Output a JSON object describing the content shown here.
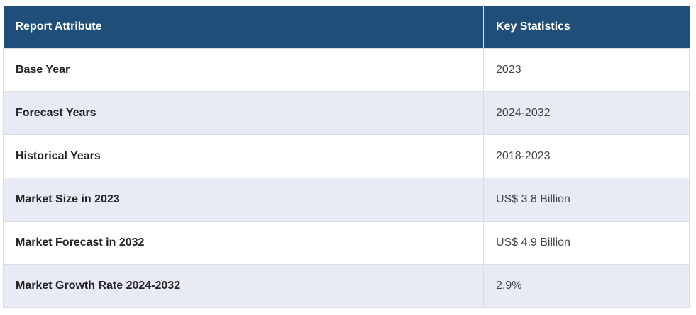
{
  "table": {
    "headers": {
      "attribute": "Report Attribute",
      "statistics": "Key Statistics"
    },
    "rows": [
      {
        "attribute": "Base Year",
        "value": "2023"
      },
      {
        "attribute": "Forecast Years",
        "value": "2024-2032"
      },
      {
        "attribute": "Historical Years",
        "value": "2018-2023"
      },
      {
        "attribute": "Market Size in 2023",
        "value": "US$ 3.8 Billion"
      },
      {
        "attribute": "Market Forecast in 2032",
        "value": "US$ 4.9 Billion"
      },
      {
        "attribute": "Market Growth Rate 2024-2032",
        "value": "2.9%"
      }
    ]
  },
  "colors": {
    "header_bg": "#1f4e79",
    "stripe_bg": "#e8eaf6",
    "border": "#d9dde6"
  }
}
